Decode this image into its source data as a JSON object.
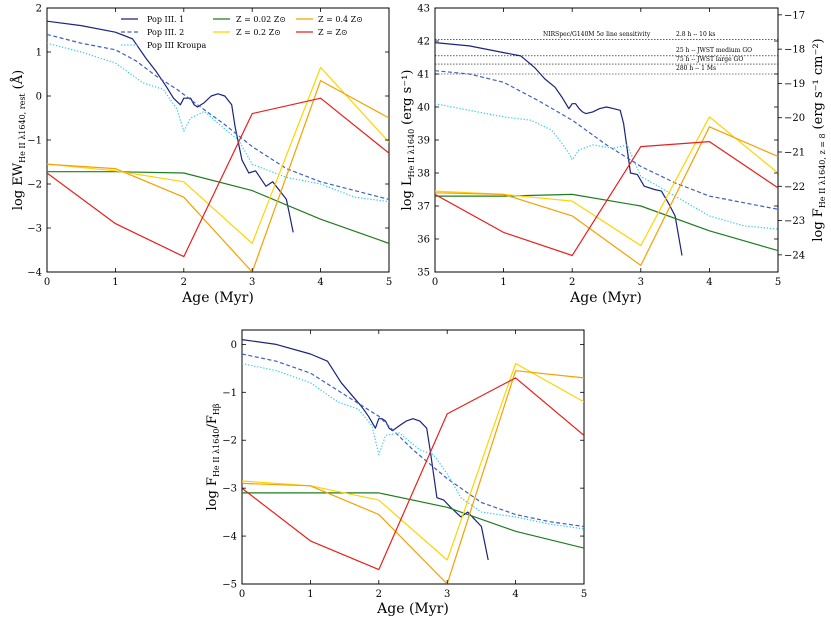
{
  "chart_data": [
    {
      "type": "line",
      "id": "ew",
      "xlabel": "Age (Myr)",
      "ylabel_main": "log EW",
      "ylabel_sub": "He II λ1640, rest",
      "ylabel_unit": "(Å)",
      "xlim": [
        0,
        5
      ],
      "ylim": [
        -4,
        2
      ],
      "xticks": [
        "0",
        "1",
        "2",
        "3",
        "4",
        "5"
      ],
      "yticks": [
        "−4",
        "−3",
        "−2",
        "−1",
        "0",
        "1",
        "2"
      ],
      "legend": [
        {
          "label": "Pop III. 1",
          "color": "#1a237e",
          "dash": "solid"
        },
        {
          "label": "Pop III. 2",
          "color": "#3f5fc4",
          "dash": "dashed"
        },
        {
          "label": "Pop III Kroupa",
          "color": "#33ccee",
          "dash": "dotted"
        },
        {
          "label": "Z = 0.02 Z⊙",
          "color": "#1e7d1e",
          "dash": "solid"
        },
        {
          "label": "Z = 0.2 Z⊙",
          "color": "#ffd400",
          "dash": "solid"
        },
        {
          "label": "Z = 0.4 Z⊙",
          "color": "#f5a000",
          "dash": "solid"
        },
        {
          "label": "Z = Z⊙",
          "color": "#e8201e",
          "dash": "solid"
        }
      ],
      "series": [
        {
          "name": "Pop III. 1",
          "x": [
            0,
            0.5,
            1,
            1.25,
            1.45,
            1.6,
            1.75,
            1.85,
            1.95,
            2.0,
            2.05,
            2.1,
            2.15,
            2.2,
            2.3,
            2.4,
            2.5,
            2.6,
            2.7,
            2.75,
            2.85,
            2.95,
            3.05,
            3.2,
            3.3,
            3.4,
            3.5,
            3.6
          ],
          "y": [
            1.7,
            1.6,
            1.45,
            1.3,
            0.85,
            0.55,
            0.2,
            -0.05,
            -0.2,
            -0.05,
            -0.05,
            -0.05,
            -0.2,
            -0.25,
            -0.15,
            0.0,
            0.05,
            0.0,
            -0.2,
            -0.7,
            -1.45,
            -1.75,
            -1.7,
            -2.05,
            -1.95,
            -2.15,
            -2.35,
            -3.1
          ]
        },
        {
          "name": "Pop III. 2",
          "x": [
            0,
            0.5,
            1,
            1.3,
            1.6,
            1.9,
            2.2,
            2.6,
            3.0,
            3.5,
            4,
            4.5,
            5
          ],
          "y": [
            1.4,
            1.2,
            1.05,
            0.8,
            0.45,
            0.15,
            -0.2,
            -0.65,
            -1.15,
            -1.65,
            -1.95,
            -2.15,
            -2.35
          ]
        },
        {
          "name": "Pop III Kroupa",
          "x": [
            0,
            0.5,
            1,
            1.4,
            1.7,
            1.9,
            2.0,
            2.1,
            2.3,
            2.6,
            2.8,
            3.0,
            3.5,
            4,
            4.5,
            5
          ],
          "y": [
            1.2,
            1.0,
            0.75,
            0.3,
            0.15,
            -0.3,
            -0.8,
            -0.5,
            -0.35,
            -0.75,
            -1.0,
            -1.55,
            -1.85,
            -2.0,
            -2.3,
            -2.4
          ]
        },
        {
          "name": "Z = 0.02 Z⊙",
          "x": [
            0,
            1,
            2,
            3,
            4,
            5
          ],
          "y": [
            -1.72,
            -1.72,
            -1.75,
            -2.15,
            -2.8,
            -3.35
          ]
        },
        {
          "name": "Z = 0.2 Z⊙",
          "x": [
            0,
            1,
            2,
            3,
            4,
            5
          ],
          "y": [
            -1.55,
            -1.7,
            -1.95,
            -3.35,
            0.65,
            -1.05
          ]
        },
        {
          "name": "Z = 0.4 Z⊙",
          "x": [
            0,
            1,
            2,
            3,
            4,
            5
          ],
          "y": [
            -1.55,
            -1.65,
            -2.3,
            -4.0,
            0.35,
            -0.5
          ]
        },
        {
          "name": "Z = Z⊙",
          "x": [
            0,
            1,
            2,
            3,
            4,
            5
          ],
          "y": [
            -1.75,
            -2.9,
            -3.65,
            -0.4,
            -0.05,
            -1.3
          ]
        }
      ]
    },
    {
      "type": "line",
      "id": "lum",
      "xlabel": "Age (Myr)",
      "ylabel_main": "log L",
      "ylabel_sub": "He II λ1640",
      "ylabel_unit": "(erg s⁻¹)",
      "ylabel_right_main": "log F",
      "ylabel_right_sub": "He II λ1640, z = 8",
      "ylabel_right_unit": "(erg s⁻¹ cm⁻²)",
      "xlim": [
        0,
        5
      ],
      "ylim": [
        35,
        43
      ],
      "ylim_right": [
        -24.5,
        -16.8
      ],
      "xticks": [
        "0",
        "1",
        "2",
        "3",
        "4",
        "5"
      ],
      "yticks": [
        "35",
        "36",
        "37",
        "38",
        "39",
        "40",
        "41",
        "42",
        "43"
      ],
      "yticks_right": [
        "−24",
        "−23",
        "−22",
        "−21",
        "−20",
        "−19",
        "−18",
        "−17"
      ],
      "sensitivity": {
        "title": "NIRSpec/G140M 5σ line sensitivity",
        "lines": [
          {
            "label": "2.8 h -- 10 ks",
            "y": 42.05
          },
          {
            "label": "25 h -- JWST medium GO",
            "y": 41.55
          },
          {
            "label": "75 h -- JWST large GO",
            "y": 41.3
          },
          {
            "label": "280 h -- 1 Ms",
            "y": 41.0
          }
        ]
      },
      "series": [
        {
          "name": "Pop III. 1",
          "x": [
            0,
            0.5,
            1,
            1.25,
            1.45,
            1.6,
            1.75,
            1.85,
            1.95,
            2.0,
            2.05,
            2.1,
            2.15,
            2.2,
            2.3,
            2.4,
            2.5,
            2.6,
            2.7,
            2.75,
            2.85,
            2.95,
            3.05,
            3.2,
            3.3,
            3.4,
            3.5,
            3.6
          ],
          "y": [
            41.95,
            41.85,
            41.65,
            41.55,
            41.2,
            40.85,
            40.6,
            40.3,
            39.95,
            40.1,
            40.1,
            39.95,
            39.85,
            39.8,
            39.85,
            39.95,
            40.0,
            39.95,
            39.9,
            39.5,
            38.0,
            37.95,
            37.6,
            37.5,
            37.45,
            37.1,
            36.7,
            35.5
          ]
        },
        {
          "name": "Pop III. 2",
          "x": [
            0,
            0.5,
            1,
            1.5,
            2,
            2.5,
            3,
            3.5,
            4,
            4.5,
            5
          ],
          "y": [
            41.1,
            41.0,
            40.75,
            40.2,
            39.6,
            38.85,
            38.2,
            37.7,
            37.3,
            37.1,
            36.9
          ]
        },
        {
          "name": "Pop III Kroupa",
          "x": [
            0,
            0.5,
            1,
            1.4,
            1.7,
            1.85,
            1.95,
            2.0,
            2.1,
            2.3,
            2.6,
            2.8,
            3.0,
            3.5,
            4,
            4.5,
            5
          ],
          "y": [
            40.1,
            39.9,
            39.7,
            39.6,
            39.3,
            38.9,
            38.6,
            38.4,
            38.7,
            38.85,
            38.75,
            38.85,
            37.9,
            37.3,
            36.7,
            36.4,
            36.3
          ]
        },
        {
          "name": "Z = 0.02 Z⊙",
          "x": [
            0,
            1,
            2,
            3,
            4,
            5
          ],
          "y": [
            37.3,
            37.3,
            37.35,
            37.0,
            36.25,
            35.65
          ]
        },
        {
          "name": "Z = 0.2 Z⊙",
          "x": [
            0,
            1,
            2,
            3,
            4,
            5
          ],
          "y": [
            37.45,
            37.35,
            37.15,
            35.8,
            39.7,
            38.0
          ]
        },
        {
          "name": "Z = 0.4 Z⊙",
          "x": [
            0,
            1,
            2,
            3,
            4,
            5
          ],
          "y": [
            37.4,
            37.35,
            36.7,
            35.2,
            39.4,
            38.5
          ]
        },
        {
          "name": "Z = Z⊙",
          "x": [
            0,
            1,
            2,
            3,
            4,
            5
          ],
          "y": [
            37.35,
            36.2,
            35.5,
            38.8,
            38.95,
            37.55
          ]
        }
      ]
    },
    {
      "type": "line",
      "id": "ratio",
      "xlabel": "Age (Myr)",
      "ylabel_main": "log F",
      "ylabel_sub": "He II λ1640",
      "ylabel_mid": "/F",
      "ylabel_sub2": "Hβ",
      "xlim": [
        0,
        5
      ],
      "ylim": [
        -5,
        0.3
      ],
      "xticks": [
        "0",
        "1",
        "2",
        "3",
        "4",
        "5"
      ],
      "yticks": [
        "−5",
        "−4",
        "−3",
        "−2",
        "−1",
        "0"
      ],
      "series": [
        {
          "name": "Pop III. 1",
          "x": [
            0,
            0.5,
            1,
            1.25,
            1.45,
            1.6,
            1.75,
            1.85,
            1.95,
            2.0,
            2.05,
            2.1,
            2.15,
            2.2,
            2.3,
            2.4,
            2.5,
            2.6,
            2.7,
            2.75,
            2.85,
            2.95,
            3.05,
            3.2,
            3.3,
            3.4,
            3.5,
            3.6
          ],
          "y": [
            0.1,
            0.0,
            -0.2,
            -0.35,
            -0.8,
            -1.05,
            -1.3,
            -1.5,
            -1.75,
            -1.55,
            -1.55,
            -1.6,
            -1.75,
            -1.8,
            -1.7,
            -1.6,
            -1.55,
            -1.6,
            -1.75,
            -2.2,
            -3.2,
            -3.25,
            -3.4,
            -3.6,
            -3.5,
            -3.65,
            -3.8,
            -4.5
          ]
        },
        {
          "name": "Pop III. 2",
          "x": [
            0,
            0.5,
            1,
            1.5,
            2,
            2.5,
            3,
            3.5,
            4,
            4.5,
            5
          ],
          "y": [
            -0.2,
            -0.35,
            -0.6,
            -1.05,
            -1.5,
            -2.2,
            -2.8,
            -3.3,
            -3.55,
            -3.7,
            -3.8
          ]
        },
        {
          "name": "Pop III Kroupa",
          "x": [
            0,
            0.5,
            1,
            1.4,
            1.7,
            1.9,
            2.0,
            2.1,
            2.3,
            2.6,
            2.8,
            3.0,
            3.2,
            3.5,
            4,
            4.5,
            5
          ],
          "y": [
            -0.4,
            -0.55,
            -0.8,
            -1.2,
            -1.35,
            -1.7,
            -2.3,
            -1.9,
            -1.85,
            -2.2,
            -2.3,
            -2.7,
            -3.2,
            -3.5,
            -3.6,
            -3.75,
            -3.85
          ]
        },
        {
          "name": "Z = 0.02 Z⊙",
          "x": [
            0,
            1,
            2,
            3,
            4,
            5
          ],
          "y": [
            -3.1,
            -3.1,
            -3.1,
            -3.4,
            -3.9,
            -4.25
          ]
        },
        {
          "name": "Z = 0.2 Z⊙",
          "x": [
            0,
            1,
            2,
            3,
            4,
            5
          ],
          "y": [
            -2.85,
            -2.95,
            -3.25,
            -4.5,
            -0.4,
            -1.2
          ]
        },
        {
          "name": "Z = 0.4 Z⊙",
          "x": [
            0,
            1,
            2,
            3,
            4,
            5
          ],
          "y": [
            -2.9,
            -2.95,
            -3.55,
            -5.0,
            -0.55,
            -0.7
          ]
        },
        {
          "name": "Z = Z⊙",
          "x": [
            0,
            1,
            2,
            3,
            4,
            5
          ],
          "y": [
            -3.0,
            -4.1,
            -4.7,
            -1.45,
            -0.7,
            -1.9
          ]
        }
      ]
    }
  ]
}
